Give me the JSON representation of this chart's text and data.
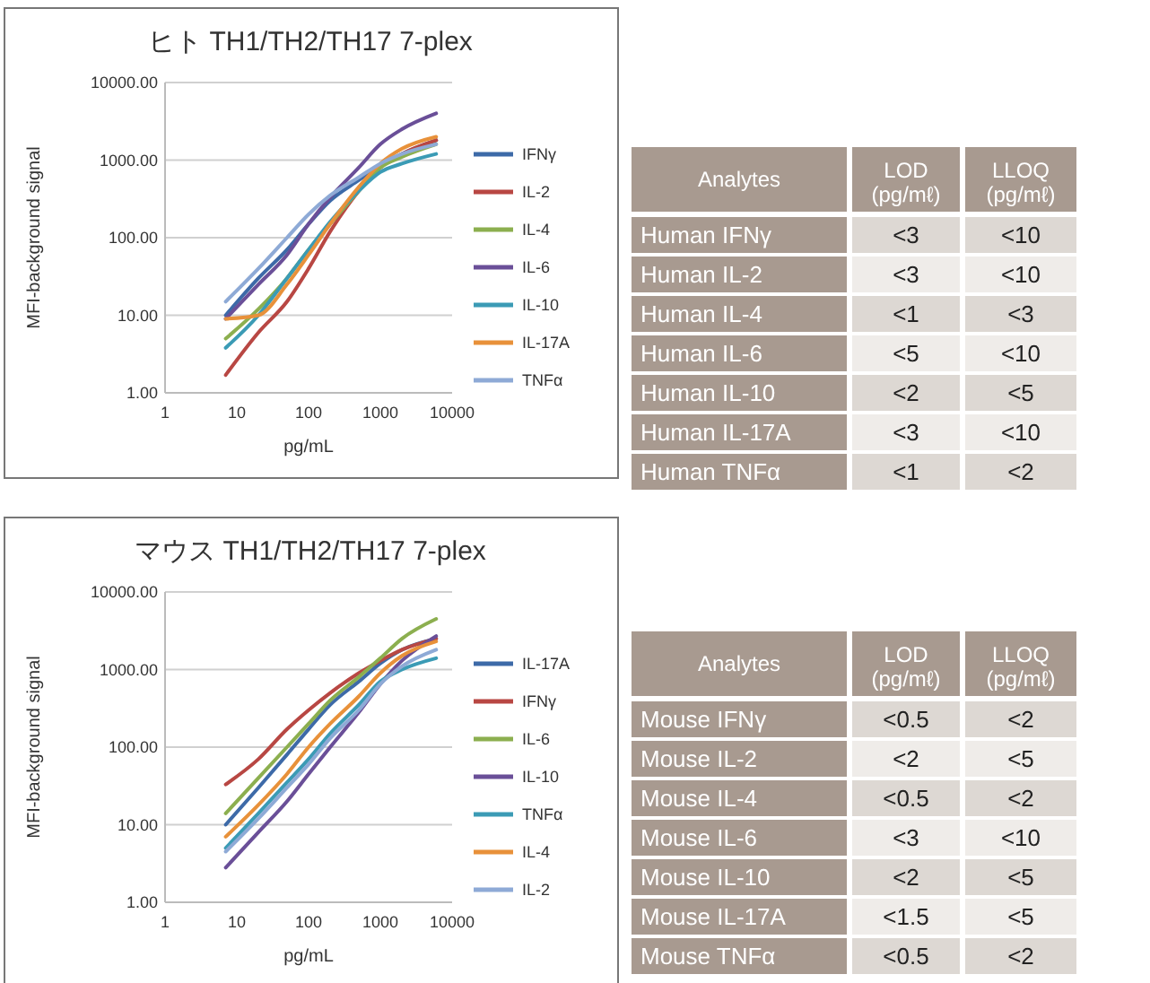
{
  "chart_data": [
    {
      "type": "line",
      "title": "ヒト TH1/TH2/TH17 7-plex",
      "xlabel": "pg/mL",
      "ylabel": "MFI-background signal",
      "log": "xy",
      "grid": "y",
      "legend": "right",
      "marker": "none",
      "line_style": "solid",
      "xlim": [
        1,
        10000
      ],
      "xticks": [
        1,
        10,
        100,
        1000,
        10000
      ],
      "ylim": [
        1,
        10000
      ],
      "yticks": [
        {
          "value": 1,
          "label": "1.00"
        },
        {
          "value": 10,
          "label": "10.00"
        },
        {
          "value": 100,
          "label": "100.00"
        },
        {
          "value": 1000,
          "label": "1000.00"
        },
        {
          "value": 10000,
          "label": "10000.00"
        }
      ],
      "x": [
        7,
        20,
        50,
        100,
        200,
        500,
        1000,
        2000,
        6000
      ],
      "series": [
        {
          "name": "IFNγ",
          "color": "#3d6aa8",
          "values": [
            10,
            30,
            70,
            150,
            300,
            550,
            850,
            1200,
            1800
          ]
        },
        {
          "name": "IL-2",
          "color": "#b84743",
          "values": [
            1.7,
            6,
            15,
            40,
            120,
            400,
            800,
            1200,
            1800
          ]
        },
        {
          "name": "IL-4",
          "color": "#8caf4f",
          "values": [
            5,
            12,
            30,
            70,
            150,
            400,
            800,
            1100,
            1600
          ]
        },
        {
          "name": "IL-6",
          "color": "#6a4f98",
          "values": [
            9,
            25,
            60,
            150,
            330,
            800,
            1600,
            2500,
            4000
          ]
        },
        {
          "name": "IL-10",
          "color": "#3b9bb5",
          "values": [
            3.8,
            10,
            30,
            70,
            160,
            400,
            700,
            900,
            1200
          ]
        },
        {
          "name": "IL-17A",
          "color": "#e8913a",
          "values": [
            9,
            10,
            25,
            60,
            150,
            450,
            900,
            1400,
            2000
          ]
        },
        {
          "name": "TNFα",
          "color": "#8eaad6",
          "values": [
            15,
            40,
            100,
            200,
            350,
            600,
            900,
            1200,
            1600
          ]
        }
      ]
    },
    {
      "type": "other",
      "categories": [
        "Analytes",
        "LOD (pg/mℓ)",
        "LLOQ (pg/mℓ)"
      ],
      "y_categories": [
        "Human IFNγ",
        "Human IL-2",
        "Human IL-4",
        "Human IL-6",
        "Human IL-10",
        "Human IL-17A",
        "Human TNFα"
      ],
      "cell_labels": [
        [
          "<3",
          "<10"
        ],
        [
          "<3",
          "<10"
        ],
        [
          "<1",
          "<3"
        ],
        [
          "<5",
          "<10"
        ],
        [
          "<2",
          "<5"
        ],
        [
          "<3",
          "<10"
        ],
        [
          "<1",
          "<2"
        ]
      ]
    },
    {
      "type": "line",
      "title": "マウス TH1/TH2/TH17 7-plex",
      "xlabel": "pg/mL",
      "ylabel": "MFI-background signal",
      "log": "xy",
      "grid": "y",
      "legend": "right",
      "marker": "none",
      "line_style": "solid",
      "xlim": [
        1,
        10000
      ],
      "xticks": [
        1,
        10,
        100,
        1000,
        10000
      ],
      "ylim": [
        1,
        10000
      ],
      "yticks": [
        {
          "value": 1,
          "label": "1.00"
        },
        {
          "value": 10,
          "label": "10.00"
        },
        {
          "value": 100,
          "label": "100.00"
        },
        {
          "value": 1000,
          "label": "1000.00"
        },
        {
          "value": 10000,
          "label": "10000.00"
        }
      ],
      "x": [
        7,
        20,
        50,
        100,
        200,
        500,
        1000,
        2000,
        6000
      ],
      "series": [
        {
          "name": "IL-17A",
          "color": "#3d6aa8",
          "values": [
            10,
            30,
            80,
            170,
            350,
            700,
            1200,
            1800,
            2500
          ]
        },
        {
          "name": "IFNγ",
          "color": "#b84743",
          "values": [
            33,
            70,
            170,
            300,
            500,
            900,
            1300,
            1800,
            2500
          ]
        },
        {
          "name": "IL-6",
          "color": "#8caf4f",
          "values": [
            14,
            40,
            100,
            200,
            400,
            800,
            1400,
            2500,
            4500
          ]
        },
        {
          "name": "IL-10",
          "color": "#6a4f98",
          "values": [
            2.8,
            8,
            20,
            45,
            100,
            280,
            650,
            1300,
            2700
          ]
        },
        {
          "name": "TNFα",
          "color": "#3b9bb5",
          "values": [
            5,
            14,
            35,
            70,
            150,
            350,
            700,
            1000,
            1400
          ]
        },
        {
          "name": "IL-4",
          "color": "#e8913a",
          "values": [
            7,
            18,
            45,
            100,
            200,
            450,
            900,
            1500,
            2300
          ]
        },
        {
          "name": "IL-2",
          "color": "#8eaad6",
          "values": [
            4.5,
            12,
            30,
            60,
            130,
            300,
            650,
            1100,
            1800
          ]
        }
      ]
    },
    {
      "type": "other",
      "categories": [
        "Analytes",
        "LOD (pg/mℓ)",
        "LLOQ (pg/mℓ)"
      ],
      "y_categories": [
        "Mouse IFNγ",
        "Mouse IL-2",
        "Mouse IL-4",
        "Mouse IL-6",
        "Mouse IL-10",
        "Mouse IL-17A",
        "Mouse TNFα"
      ],
      "cell_labels": [
        [
          "<0.5",
          "<2"
        ],
        [
          "<2",
          "<5"
        ],
        [
          "<0.5",
          "<2"
        ],
        [
          "<3",
          "<10"
        ],
        [
          "<2",
          "<5"
        ],
        [
          "<1.5",
          "<5"
        ],
        [
          "<0.5",
          "<2"
        ]
      ]
    }
  ]
}
